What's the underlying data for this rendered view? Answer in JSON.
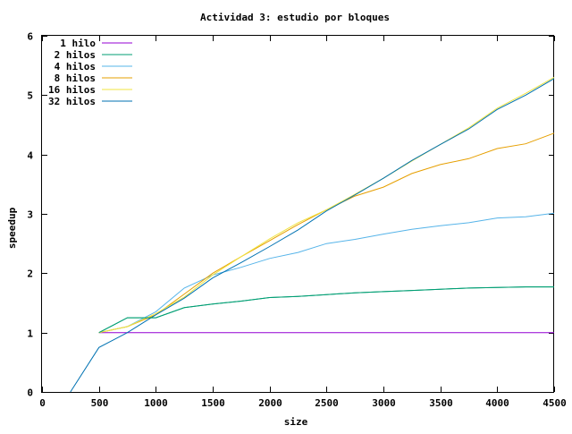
{
  "chart_data": {
    "type": "line",
    "title": "Actividad 3: estudio por bloques",
    "xlabel": "size",
    "ylabel": "speedup",
    "xlim": [
      0,
      4500
    ],
    "ylim": [
      0,
      6
    ],
    "xticks": [
      0,
      500,
      1000,
      1500,
      2000,
      2500,
      3000,
      3500,
      4000,
      4500
    ],
    "yticks": [
      0,
      1,
      2,
      3,
      4,
      5,
      6
    ],
    "grid": false,
    "legend_position": "top-left",
    "series": [
      {
        "name": "1 hilo",
        "color": "#9400d3",
        "x": [
          500,
          750,
          1000,
          1250,
          1500,
          1750,
          2000,
          2250,
          2500,
          2750,
          3000,
          3250,
          3500,
          3750,
          4000,
          4250,
          4500
        ],
        "y": [
          1,
          1,
          1,
          1,
          1,
          1,
          1,
          1,
          1,
          1,
          1,
          1,
          1,
          1,
          1,
          1,
          1
        ]
      },
      {
        "name": "2 hilos",
        "color": "#009e73",
        "x": [
          500,
          750,
          1000,
          1250,
          1500,
          1750,
          2000,
          2250,
          2500,
          2750,
          3000,
          3250,
          3500,
          3750,
          4000,
          4250,
          4500
        ],
        "y": [
          1.0,
          1.25,
          1.25,
          1.42,
          1.48,
          1.53,
          1.59,
          1.61,
          1.64,
          1.67,
          1.69,
          1.71,
          1.73,
          1.75,
          1.76,
          1.77,
          1.77
        ]
      },
      {
        "name": "4 hilos",
        "color": "#56b4e9",
        "x": [
          500,
          750,
          1000,
          1250,
          1500,
          1750,
          2000,
          2250,
          2500,
          2750,
          3000,
          3250,
          3500,
          3750,
          4000,
          4250,
          4500
        ],
        "y": [
          1.0,
          1.1,
          1.35,
          1.75,
          1.97,
          2.1,
          2.25,
          2.35,
          2.5,
          2.57,
          2.66,
          2.74,
          2.8,
          2.85,
          2.93,
          2.95,
          3.01
        ]
      },
      {
        "name": "8 hilos",
        "color": "#e69f00",
        "x": [
          500,
          750,
          1000,
          1250,
          1500,
          1750,
          2000,
          2250,
          2500,
          2750,
          3000,
          3250,
          3500,
          3750,
          4000,
          4250,
          4500
        ],
        "y": [
          1.0,
          1.1,
          1.3,
          1.65,
          2.0,
          2.28,
          2.55,
          2.82,
          3.07,
          3.3,
          3.45,
          3.68,
          3.83,
          3.93,
          4.1,
          4.18,
          4.36
        ]
      },
      {
        "name": "16 hilos",
        "color": "#f0e442",
        "x": [
          500,
          750,
          1000,
          1250,
          1500,
          1750,
          2000,
          2250,
          2500,
          2750,
          3000,
          3250,
          3500,
          3750,
          4000,
          4250,
          4500
        ],
        "y": [
          1.0,
          1.1,
          1.32,
          1.6,
          1.97,
          2.28,
          2.58,
          2.85,
          3.07,
          3.33,
          3.6,
          3.89,
          4.17,
          4.45,
          4.78,
          5.03,
          5.3
        ]
      },
      {
        "name": "32 hilos",
        "color": "#0072b2",
        "x": [
          250,
          500,
          750,
          1000,
          1250,
          1500,
          1750,
          2000,
          2250,
          2500,
          2750,
          3000,
          3250,
          3500,
          3750,
          4000,
          4250,
          4500
        ],
        "y": [
          0.0,
          0.75,
          1.0,
          1.3,
          1.58,
          1.92,
          2.18,
          2.45,
          2.73,
          3.05,
          3.32,
          3.6,
          3.9,
          4.17,
          4.43,
          4.76,
          5.0,
          5.28
        ]
      },
      {
        "name": "",
        "color": "#009e73",
        "x": [
          500,
          750,
          1000,
          1250,
          1500,
          1750,
          2000,
          2250,
          2500,
          2750,
          3000,
          3250,
          3500,
          3750,
          4000,
          4250,
          4500
        ],
        "y": [
          1.0,
          1.25,
          1.25,
          1.42,
          1.48,
          1.53,
          1.59,
          1.61,
          1.64,
          1.67,
          1.69,
          1.71,
          1.73,
          1.75,
          1.76,
          1.77,
          1.77
        ]
      }
    ]
  }
}
